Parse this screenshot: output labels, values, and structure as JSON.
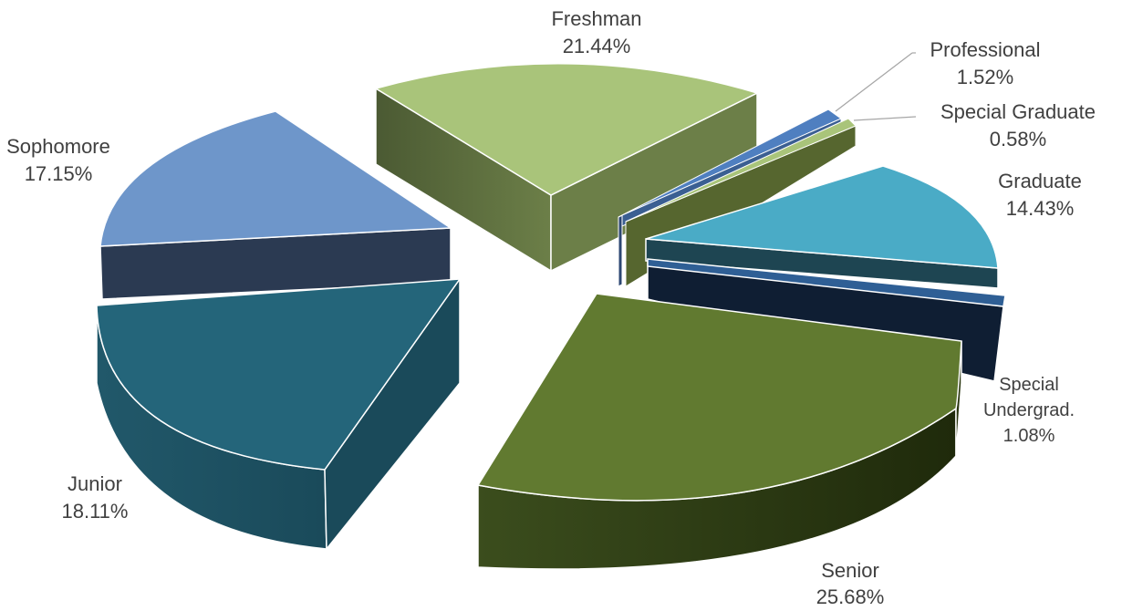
{
  "chart_data": {
    "type": "pie",
    "title": "",
    "categories": [
      "Freshman",
      "Professional",
      "Special Graduate",
      "Graduate",
      "Special Undergrad.",
      "Senior",
      "Junior",
      "Sophomore"
    ],
    "values": [
      21.44,
      1.52,
      0.58,
      14.43,
      1.08,
      25.68,
      18.11,
      17.15
    ],
    "labels": [
      {
        "name": "Freshman",
        "pct": "21.44%"
      },
      {
        "name": "Professional",
        "pct": "1.52%"
      },
      {
        "name": "Special Graduate",
        "pct": "0.58%"
      },
      {
        "name": "Graduate",
        "pct": "14.43%"
      },
      {
        "name": "Special",
        "name2": "Undergrad.",
        "pct": "1.08%"
      },
      {
        "name": "Senior",
        "pct": "25.68%"
      },
      {
        "name": "Junior",
        "pct": "18.11%"
      },
      {
        "name": "Sophomore",
        "pct": "17.15%"
      }
    ],
    "style": "3d-exploded-pie",
    "colors": [
      "#a9c47a",
      "#4f7fc0",
      "#a9c47a",
      "#4aabc6",
      "#2f5f95",
      "#617a30",
      "#24657a",
      "#6e96ca"
    ],
    "side_colors": [
      "#475332",
      "#2c4773",
      "#56662f",
      "#1e4552",
      "#0d1c30",
      "#2a3610",
      "#1b4a59",
      "#2b3a52"
    ],
    "legend": "none"
  }
}
